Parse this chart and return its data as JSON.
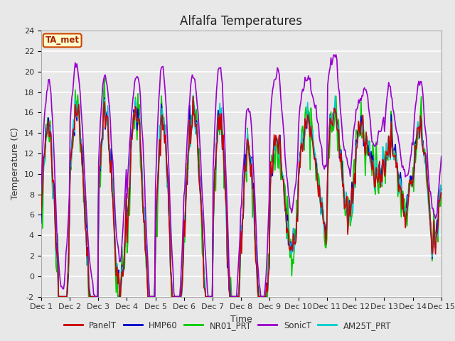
{
  "title": "Alfalfa Temperatures",
  "xlabel": "Time",
  "ylabel": "Temperature (C)",
  "ylim": [
    -2,
    24
  ],
  "yticks": [
    -2,
    0,
    2,
    4,
    6,
    8,
    10,
    12,
    14,
    16,
    18,
    20,
    22,
    24
  ],
  "xtick_labels": [
    "Dec 1",
    "Dec 2",
    "Dec 3",
    "Dec 4",
    "Dec 5",
    "Dec 6",
    "Dec 7",
    "Dec 8",
    "Dec 9",
    "Dec 10",
    "Dec 11",
    "Dec 12",
    "Dec 13",
    "Dec 14",
    "Dec 15"
  ],
  "series_colors": {
    "PanelT": "#cc0000",
    "HMP60": "#0000cc",
    "NR01_PRT": "#00cc00",
    "SonicT": "#9900cc",
    "AM25T_PRT": "#00cccc"
  },
  "legend_labels": [
    "PanelT",
    "HMP60",
    "NR01_PRT",
    "SonicT",
    "AM25T_PRT"
  ],
  "annotation_text": "TA_met",
  "annotation_box_color": "#ffffcc",
  "annotation_box_edge": "#cc4400",
  "annotation_text_color": "#aa2200",
  "fig_bg_color": "#e8e8e8",
  "plot_bg_color": "#e8e8e8",
  "grid_color": "#ffffff",
  "title_fontsize": 12,
  "axis_fontsize": 9,
  "tick_fontsize": 8,
  "linewidth": 1.2
}
